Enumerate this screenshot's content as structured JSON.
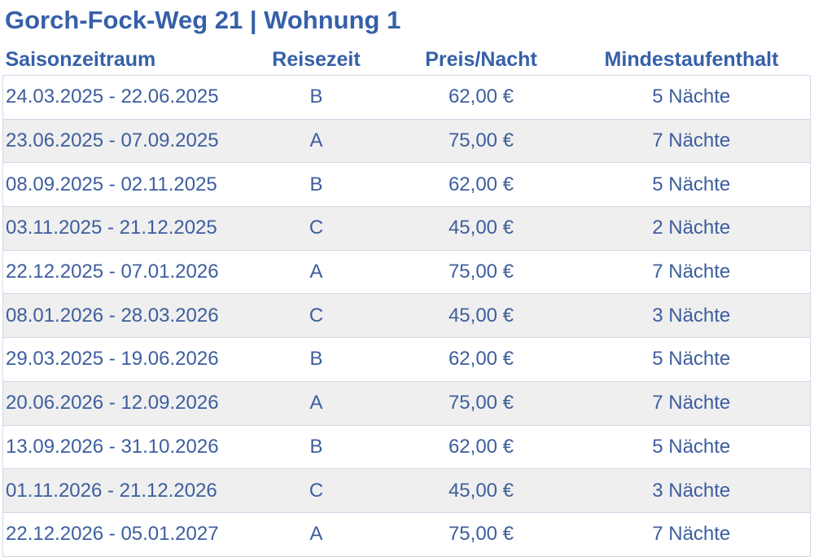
{
  "title": "Gorch-Fock-Weg 21 | Wohnung 1",
  "table": {
    "headers": [
      "Saisonzeitraum",
      "Reisezeit",
      "Preis/Nacht",
      "Mindestaufenthalt"
    ],
    "rows": [
      [
        "24.03.2025 - 22.06.2025",
        "B",
        "62,00 €",
        "5 Nächte"
      ],
      [
        "23.06.2025 - 07.09.2025",
        "A",
        "75,00 €",
        "7 Nächte"
      ],
      [
        "08.09.2025 - 02.11.2025",
        "B",
        "62,00 €",
        "5 Nächte"
      ],
      [
        "03.11.2025 - 21.12.2025",
        "C",
        "45,00 €",
        "2 Nächte"
      ],
      [
        "22.12.2025 - 07.01.2026",
        "A",
        "75,00 €",
        "7 Nächte"
      ],
      [
        "08.01.2026 - 28.03.2026",
        "C",
        "45,00 €",
        "3 Nächte"
      ],
      [
        "29.03.2025 - 19.06.2026",
        "B",
        "62,00 €",
        "5 Nächte"
      ],
      [
        "20.06.2026 - 12.09.2026",
        "A",
        "75,00 €",
        "7 Nächte"
      ],
      [
        "13.09.2026 - 31.10.2026",
        "B",
        "62,00 €",
        "5 Nächte"
      ],
      [
        "01.11.2026 - 21.12.2026",
        "C",
        "45,00 €",
        "3 Nächte"
      ],
      [
        "22.12.2026 - 05.01.2027",
        "A",
        "75,00 €",
        "7 Nächte"
      ]
    ]
  },
  "colors": {
    "heading": "#3660a8",
    "text": "#3d5e9e",
    "row_alt": "#efefef",
    "border": "#d0d8e6"
  }
}
